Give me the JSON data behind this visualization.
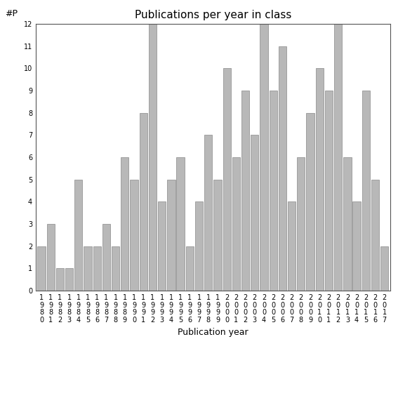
{
  "title": "Publications per year in class",
  "xlabel": "Publication year",
  "ylabel": "#P",
  "years": [
    1980,
    1981,
    1982,
    1983,
    1984,
    1985,
    1986,
    1987,
    1988,
    1989,
    1990,
    1991,
    1992,
    1993,
    1994,
    1995,
    1996,
    1997,
    1998,
    1999,
    2000,
    2001,
    2002,
    2003,
    2004,
    2005,
    2006,
    2007,
    2008,
    2009,
    2010,
    2011,
    2012,
    2013,
    2014,
    2015,
    2016,
    2017
  ],
  "values": [
    2,
    3,
    1,
    1,
    5,
    2,
    2,
    3,
    2,
    6,
    5,
    8,
    12,
    4,
    5,
    6,
    2,
    4,
    7,
    5,
    10,
    6,
    9,
    7,
    12,
    9,
    11,
    4,
    6,
    8,
    10,
    9,
    12,
    6,
    4,
    9,
    5,
    2
  ],
  "bar_color": "#b8b8b8",
  "bar_edge_color": "#888888",
  "ylim": [
    0,
    12
  ],
  "yticks": [
    0,
    1,
    2,
    3,
    4,
    5,
    6,
    7,
    8,
    9,
    10,
    11,
    12
  ],
  "title_fontsize": 11,
  "axis_label_fontsize": 9,
  "tick_fontsize": 7,
  "bg_color": "#ffffff"
}
